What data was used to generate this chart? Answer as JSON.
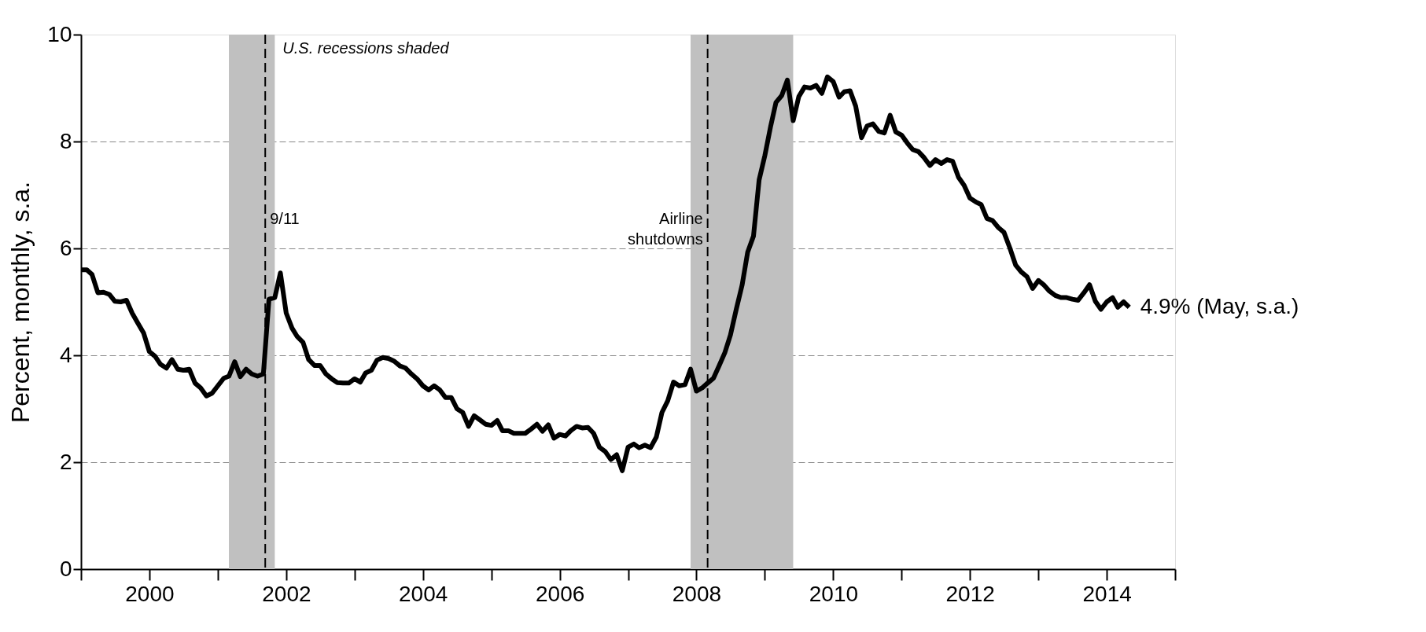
{
  "chart_data": {
    "type": "line",
    "ylabel": "Percent, monthly, s.a.",
    "x": [
      "1999-01",
      "1999-02",
      "1999-03",
      "1999-04",
      "1999-05",
      "1999-06",
      "1999-07",
      "1999-08",
      "1999-09",
      "1999-10",
      "1999-11",
      "1999-12",
      "2000-01",
      "2000-02",
      "2000-03",
      "2000-04",
      "2000-05",
      "2000-06",
      "2000-07",
      "2000-08",
      "2000-09",
      "2000-10",
      "2000-11",
      "2000-12",
      "2001-01",
      "2001-02",
      "2001-03",
      "2001-04",
      "2001-05",
      "2001-06",
      "2001-07",
      "2001-08",
      "2001-09",
      "2001-10",
      "2001-11",
      "2001-12",
      "2002-01",
      "2002-02",
      "2002-03",
      "2002-04",
      "2002-05",
      "2002-06",
      "2002-07",
      "2002-08",
      "2002-09",
      "2002-10",
      "2002-11",
      "2002-12",
      "2003-01",
      "2003-02",
      "2003-03",
      "2003-04",
      "2003-05",
      "2003-06",
      "2003-07",
      "2003-08",
      "2003-09",
      "2003-10",
      "2003-11",
      "2003-12",
      "2004-01",
      "2004-02",
      "2004-03",
      "2004-04",
      "2004-05",
      "2004-06",
      "2004-07",
      "2004-08",
      "2004-09",
      "2004-10",
      "2004-11",
      "2004-12",
      "2005-01",
      "2005-02",
      "2005-03",
      "2005-04",
      "2005-05",
      "2005-06",
      "2005-07",
      "2005-08",
      "2005-09",
      "2005-10",
      "2005-11",
      "2005-12",
      "2006-01",
      "2006-02",
      "2006-03",
      "2006-04",
      "2006-05",
      "2006-06",
      "2006-07",
      "2006-08",
      "2006-09",
      "2006-10",
      "2006-11",
      "2006-12",
      "2007-01",
      "2007-02",
      "2007-03",
      "2007-04",
      "2007-05",
      "2007-06",
      "2007-07",
      "2007-08",
      "2007-09",
      "2007-10",
      "2007-11",
      "2007-12",
      "2008-01",
      "2008-02",
      "2008-03",
      "2008-04",
      "2008-05",
      "2008-06",
      "2008-07",
      "2008-08",
      "2008-09",
      "2008-10",
      "2008-11",
      "2008-12",
      "2009-01",
      "2009-02",
      "2009-03",
      "2009-04",
      "2009-05",
      "2009-06",
      "2009-07",
      "2009-08",
      "2009-09",
      "2009-10",
      "2009-11",
      "2009-12",
      "2010-01",
      "2010-02",
      "2010-03",
      "2010-04",
      "2010-05",
      "2010-06",
      "2010-07",
      "2010-08",
      "2010-09",
      "2010-10",
      "2010-11",
      "2010-12",
      "2011-01",
      "2011-02",
      "2011-03",
      "2011-04",
      "2011-05",
      "2011-06",
      "2011-07",
      "2011-08",
      "2011-09",
      "2011-10",
      "2011-11",
      "2011-12",
      "2012-01",
      "2012-02",
      "2012-03",
      "2012-04",
      "2012-05",
      "2012-06",
      "2012-07",
      "2012-08",
      "2012-09",
      "2012-10",
      "2012-11",
      "2012-12",
      "2013-01",
      "2013-02",
      "2013-03",
      "2013-04",
      "2013-05",
      "2013-06",
      "2013-07",
      "2013-08",
      "2013-09",
      "2013-10",
      "2013-11",
      "2013-12",
      "2014-01",
      "2014-02",
      "2014-03",
      "2014-04",
      "2014-05"
    ],
    "series": [
      {
        "color": "#000000",
        "values": [
          5.6,
          5.6,
          5.51,
          5.17,
          5.18,
          5.14,
          5.01,
          5.0,
          5.03,
          4.79,
          4.6,
          4.42,
          4.07,
          3.98,
          3.83,
          3.76,
          3.92,
          3.74,
          3.72,
          3.74,
          3.48,
          3.39,
          3.24,
          3.29,
          3.43,
          3.57,
          3.61,
          3.88,
          3.6,
          3.74,
          3.65,
          3.61,
          3.65,
          5.05,
          5.08,
          5.54,
          4.79,
          4.51,
          4.35,
          4.24,
          3.92,
          3.81,
          3.81,
          3.65,
          3.56,
          3.49,
          3.48,
          3.48,
          3.56,
          3.5,
          3.67,
          3.72,
          3.91,
          3.96,
          3.94,
          3.89,
          3.8,
          3.76,
          3.65,
          3.56,
          3.43,
          3.35,
          3.43,
          3.35,
          3.21,
          3.21,
          3.0,
          2.93,
          2.67,
          2.87,
          2.79,
          2.71,
          2.69,
          2.78,
          2.59,
          2.59,
          2.54,
          2.54,
          2.54,
          2.62,
          2.71,
          2.58,
          2.7,
          2.45,
          2.52,
          2.49,
          2.59,
          2.67,
          2.64,
          2.65,
          2.54,
          2.28,
          2.2,
          2.05,
          2.14,
          1.84,
          2.28,
          2.34,
          2.27,
          2.32,
          2.27,
          2.47,
          2.93,
          3.15,
          3.5,
          3.43,
          3.45,
          3.74,
          3.33,
          3.39,
          3.48,
          3.57,
          3.8,
          4.05,
          4.38,
          4.86,
          5.31,
          5.93,
          6.23,
          7.28,
          7.74,
          8.29,
          8.73,
          8.86,
          9.15,
          8.39,
          8.84,
          9.02,
          9.0,
          9.05,
          8.9,
          9.21,
          9.12,
          8.83,
          8.93,
          8.95,
          8.66,
          8.07,
          8.29,
          8.33,
          8.19,
          8.16,
          8.49,
          8.18,
          8.12,
          7.97,
          7.85,
          7.81,
          7.7,
          7.55,
          7.66,
          7.59,
          7.66,
          7.63,
          7.33,
          7.18,
          6.94,
          6.87,
          6.82,
          6.56,
          6.52,
          6.39,
          6.3,
          6.01,
          5.69,
          5.56,
          5.47,
          5.25,
          5.4,
          5.31,
          5.2,
          5.12,
          5.08,
          5.08,
          5.05,
          5.03,
          5.17,
          5.32,
          5.01,
          4.86,
          5.0,
          5.08,
          4.9,
          5.0,
          4.9
        ]
      }
    ],
    "xlim": [
      "1999-01",
      "2015-01"
    ],
    "xticks": [
      {
        "value": "1999",
        "label": null
      },
      {
        "value": "2000",
        "label": "2000"
      },
      {
        "value": "2001",
        "label": null
      },
      {
        "value": "2002",
        "label": "2002"
      },
      {
        "value": "2003",
        "label": null
      },
      {
        "value": "2004",
        "label": "2004"
      },
      {
        "value": "2005",
        "label": null
      },
      {
        "value": "2006",
        "label": "2006"
      },
      {
        "value": "2007",
        "label": null
      },
      {
        "value": "2008",
        "label": "2008"
      },
      {
        "value": "2009",
        "label": null
      },
      {
        "value": "2010",
        "label": "2010"
      },
      {
        "value": "2011",
        "label": null
      },
      {
        "value": "2012",
        "label": "2012"
      },
      {
        "value": "2013",
        "label": null
      },
      {
        "value": "2014",
        "label": "2014"
      },
      {
        "value": "2015",
        "label": null
      }
    ],
    "ylim": [
      0,
      10
    ],
    "yticks": [
      0,
      2,
      4,
      6,
      8,
      10
    ],
    "grid": "y",
    "bands": [
      {
        "axis": "x",
        "from": "2001-03",
        "to": "2001-11",
        "color": "#c0c0c0"
      },
      {
        "axis": "x",
        "from": "2007-12",
        "to": "2009-06",
        "color": "#c0c0c0"
      }
    ],
    "ref_lines": [
      {
        "axis": "x",
        "value": "2001-09-11",
        "label": "9/11",
        "color": "#000000",
        "line_style": "dashed"
      },
      {
        "axis": "x",
        "value": "2008-03",
        "label": "Airline shutdowns",
        "color": "#000000",
        "line_style": "dashed"
      }
    ],
    "annotations": [
      "U.S. recessions shaded",
      {
        "text": "4.9% (May, s.a.)",
        "x": "2014-05",
        "y": 4.9
      }
    ]
  }
}
